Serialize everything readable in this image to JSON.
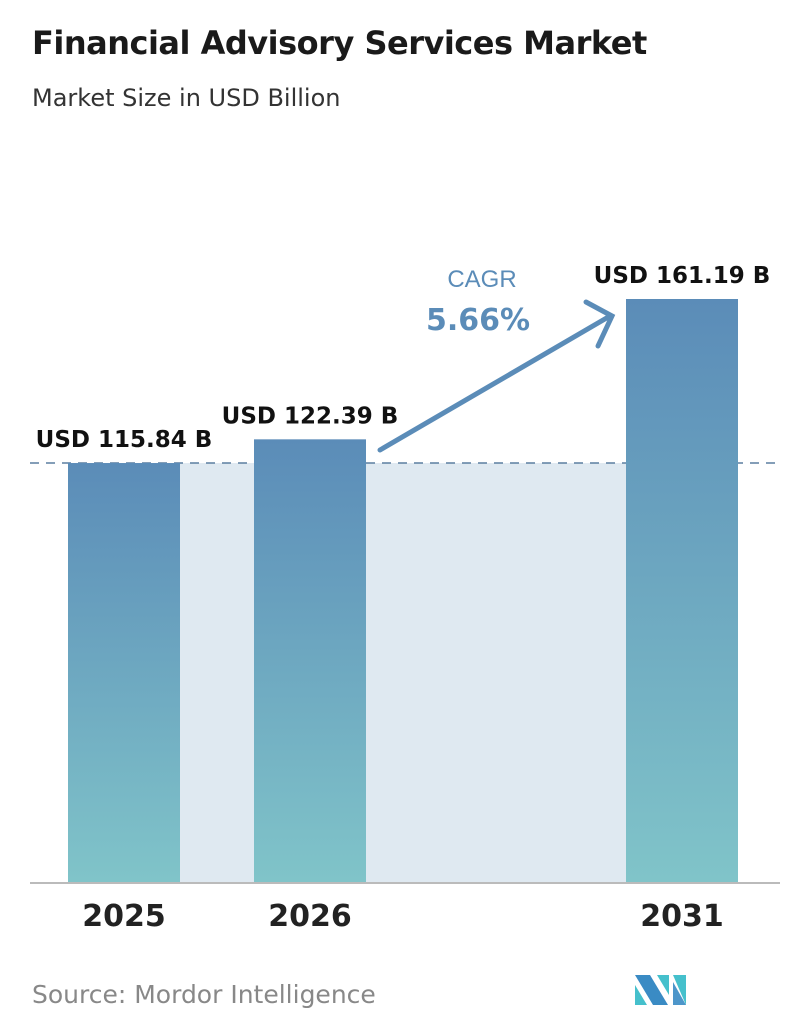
{
  "chart_data": {
    "type": "bar",
    "title": "Financial Advisory Services Market",
    "subtitle": "Market Size in USD Billion",
    "categories": [
      "2025",
      "2026",
      "2031"
    ],
    "values": [
      115.84,
      122.39,
      161.19
    ],
    "data_labels": [
      "USD 115.84 B",
      "USD 122.39 B",
      "USD 161.19 B"
    ],
    "unit": "USD Billion",
    "annotation": {
      "label": "CAGR",
      "value": "5.66%"
    },
    "reference_line": 115.84,
    "ylim": [
      0,
      161.19
    ],
    "grid": false,
    "colors": {
      "bar_top": "#5b8cb8",
      "bar_bottom": "#80c4c9",
      "shade": "#dfe9f1",
      "accent": "#5b8cb8"
    }
  },
  "source": "Source:  Mordor Intelligence",
  "logo": "Mordor Intelligence"
}
